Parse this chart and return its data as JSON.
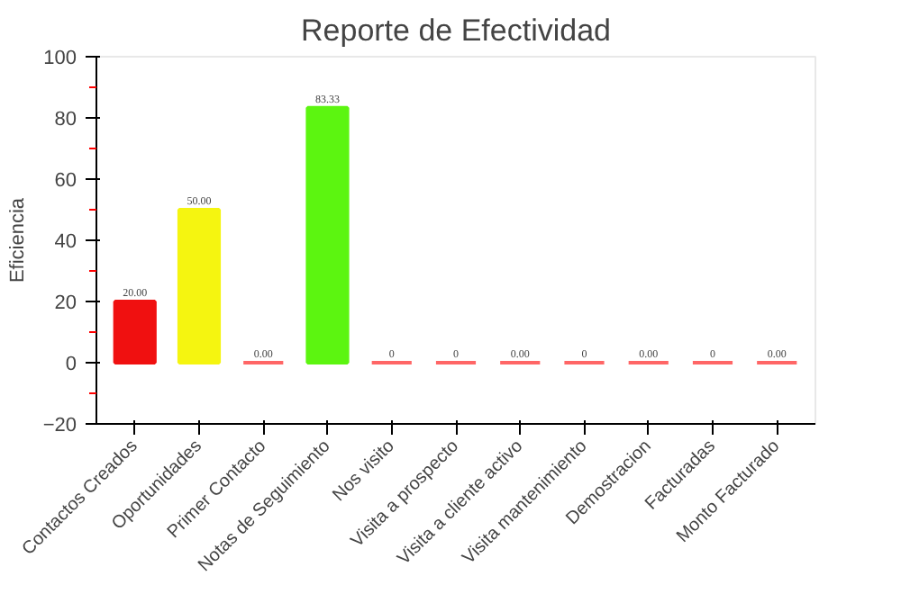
{
  "chart_data": {
    "type": "bar",
    "title": "Reporte de Efectividad",
    "ylabel": "Eficiencia",
    "categories": [
      "Contactos Creados",
      "Oportunidades",
      "Primer Contacto",
      "Notas de Seguimiento",
      "Nos visito",
      "Visita a prospecto",
      "Visita a cliente activo",
      "Visita mantenimiento",
      "Demostracion",
      "Facturadas",
      "Monto Facturado"
    ],
    "values": [
      20,
      50,
      0,
      83.33,
      0,
      0,
      0,
      0,
      0,
      0,
      0
    ],
    "colors": [
      "#f01010",
      "#f5f510",
      "#ff6666",
      "#5cf510",
      "#ff6666",
      "#ff6666",
      "#ff6666",
      "#ff6666",
      "#ff6666",
      "#ff6666",
      "#ff6666"
    ],
    "value_labels": [
      "20.00",
      "50.00",
      "0.00",
      "83.33",
      "0",
      "0",
      "0.00",
      "0",
      "0.00",
      "0",
      "0.00"
    ],
    "ylim": [
      -20,
      100
    ],
    "yticks": [
      -20,
      0,
      20,
      40,
      60,
      80,
      100
    ],
    "grid": false
  }
}
